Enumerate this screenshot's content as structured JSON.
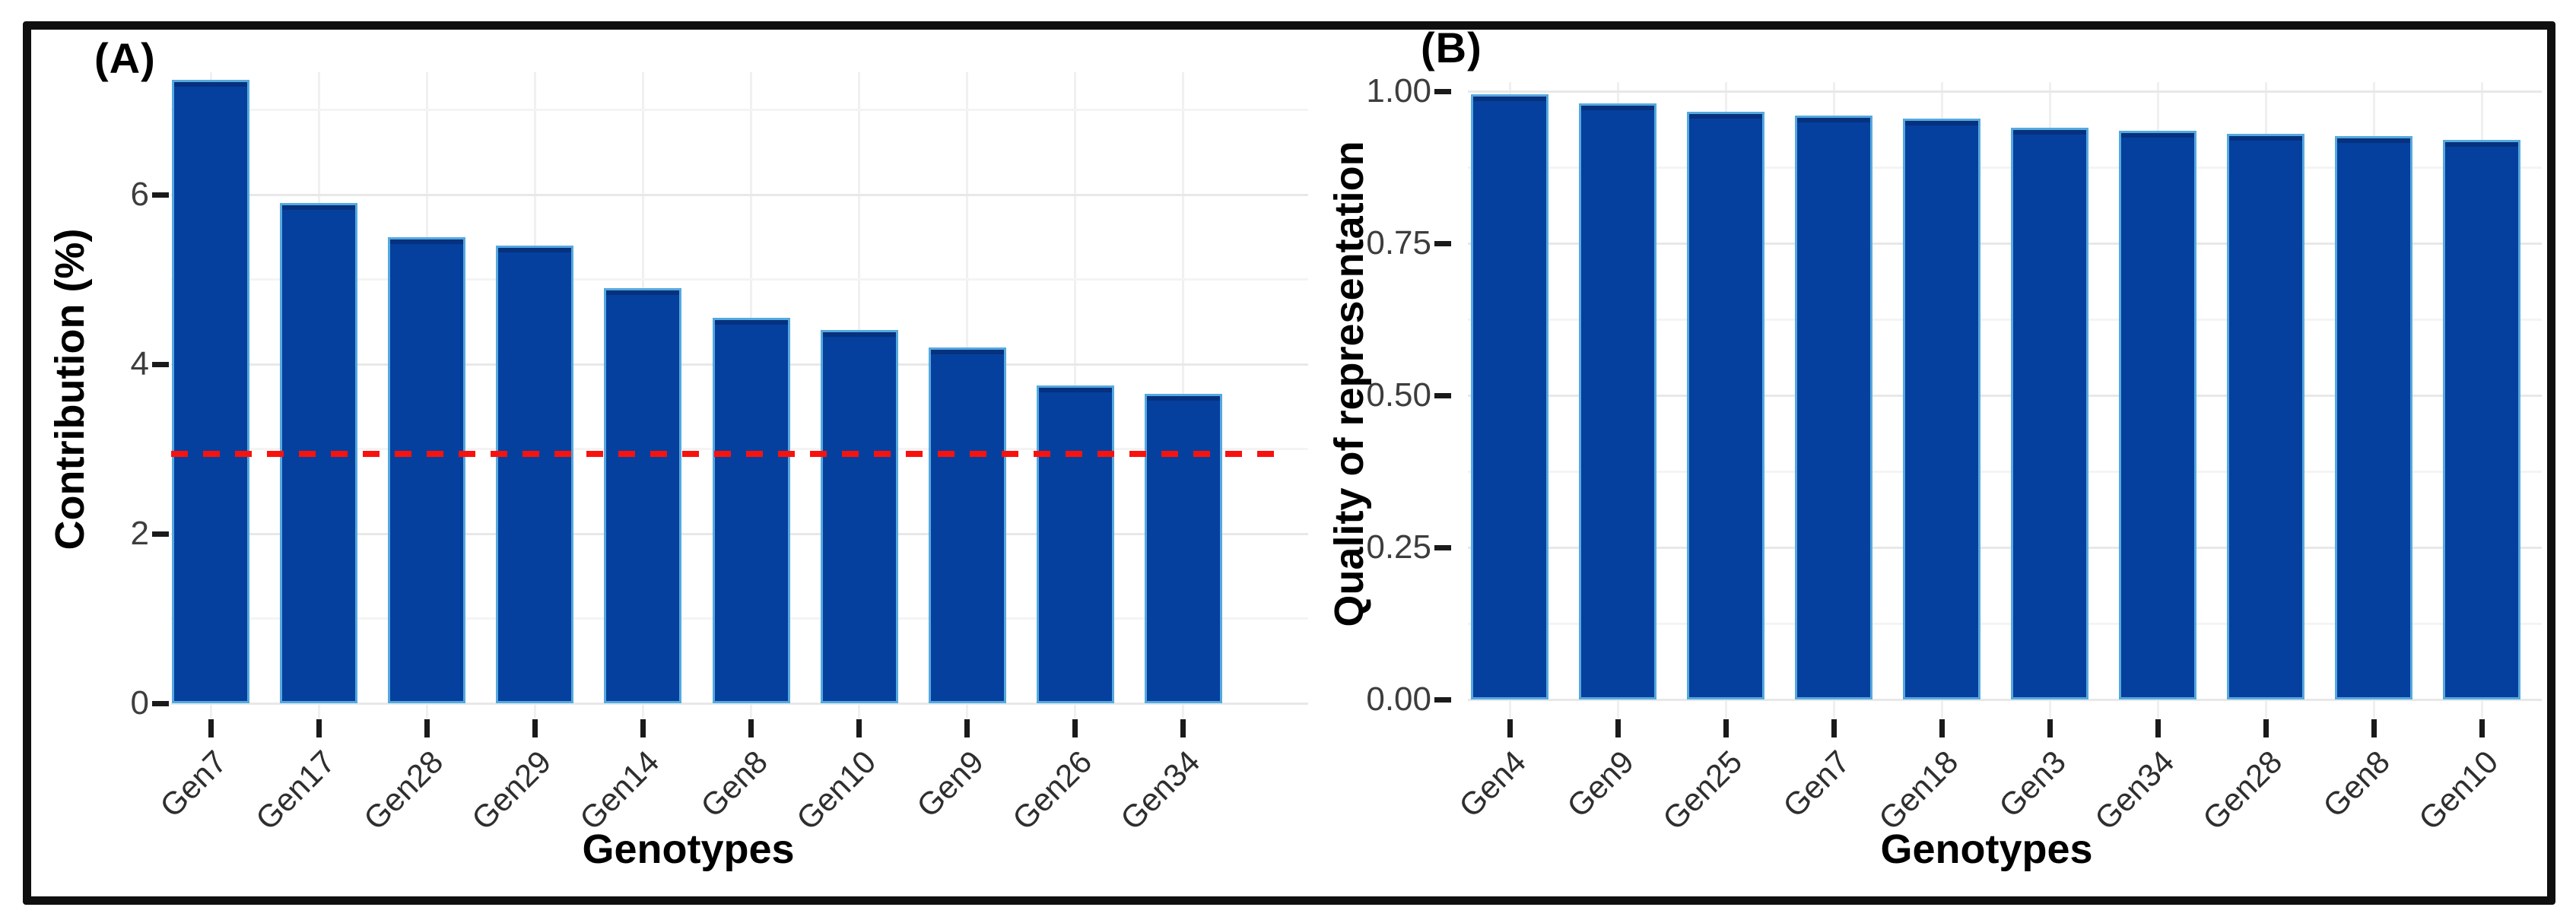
{
  "figure": {
    "background": "#ffffff",
    "border_color": "#0f0f0f",
    "grid_major_color": "#e8e8e8",
    "grid_minor_color": "#f4f4f4",
    "grid_vertical_color": "#f0f0f0"
  },
  "chart_data": [
    {
      "type": "bar",
      "panel_label": "(A)",
      "title": "",
      "xlabel": "Genotypes",
      "ylabel": "Contribution (%)",
      "categories": [
        "Gen7",
        "Gen17",
        "Gen28",
        "Gen29",
        "Gen14",
        "Gen8",
        "Gen10",
        "Gen9",
        "Gen26",
        "Gen34"
      ],
      "values": [
        7.35,
        5.9,
        5.5,
        5.4,
        4.9,
        4.55,
        4.4,
        4.2,
        3.75,
        3.65
      ],
      "ylim": [
        0,
        7.4
      ],
      "y_ticks": {
        "values": [
          0,
          2,
          4,
          6
        ],
        "labels": [
          "0",
          "2",
          "4",
          "6"
        ]
      },
      "y_minor_gridlines": [
        1,
        3,
        5,
        7
      ],
      "grid": "light horizontal major+minor lines, light vertical lines at bar centers",
      "legend_position": "none",
      "reference_line": {
        "value": 2.94,
        "color": "#f8120e",
        "style": "dashed"
      },
      "bar_fill": "#05409e",
      "bar_outline": "#55a9de",
      "axis_text_color": "#3d3d3d",
      "axis_title_color": "#000000"
    },
    {
      "type": "bar",
      "panel_label": "(B)",
      "title": "",
      "xlabel": "Genotypes",
      "ylabel": "Quality of representation",
      "categories": [
        "Gen4",
        "Gen9",
        "Gen25",
        "Gen7",
        "Gen18",
        "Gen3",
        "Gen34",
        "Gen28",
        "Gen8",
        "Gen10"
      ],
      "values": [
        0.995,
        0.98,
        0.966,
        0.96,
        0.955,
        0.94,
        0.935,
        0.93,
        0.926,
        0.92
      ],
      "ylim": [
        0,
        1.02
      ],
      "y_ticks": {
        "values": [
          0,
          0.25,
          0.5,
          0.75,
          1
        ],
        "labels": [
          "0.00",
          "0.25",
          "0.50",
          "0.75",
          "1.00"
        ]
      },
      "y_minor_gridlines": [
        0.125,
        0.375,
        0.625,
        0.875
      ],
      "grid": "light horizontal major+minor lines, light vertical lines at bar centers",
      "legend_position": "none",
      "reference_line": null,
      "bar_fill": "#05409e",
      "bar_outline": "#55a9de",
      "axis_text_color": "#3d3d3d",
      "axis_title_color": "#000000"
    }
  ]
}
